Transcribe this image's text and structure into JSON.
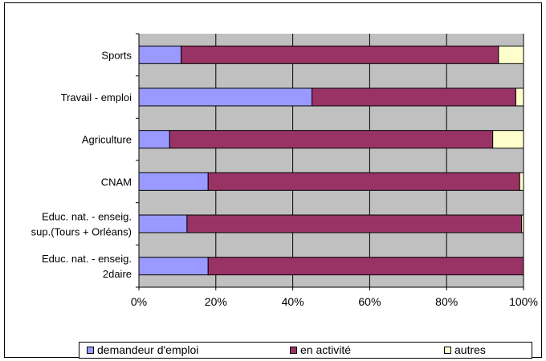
{
  "chart_data": {
    "type": "bar",
    "orientation": "horizontal",
    "stacked": true,
    "percent": true,
    "categories": [
      [
        "Sports"
      ],
      [
        "Travail - emploi"
      ],
      [
        "Agriculture"
      ],
      [
        "CNAM"
      ],
      [
        "Educ. nat. - enseig.",
        "sup.(Tours + Orléans)"
      ],
      [
        "Educ. nat. - enseig.",
        "2daire"
      ]
    ],
    "series": [
      {
        "name": "demandeur d'emploi",
        "color": "#9999ff",
        "values": [
          11,
          45,
          8,
          18,
          12.5,
          18
        ]
      },
      {
        "name": "en activité",
        "color": "#993366",
        "values": [
          82.5,
          53,
          84,
          81,
          87,
          82
        ]
      },
      {
        "name": "autres",
        "color": "#ffffcc",
        "values": [
          6.5,
          2,
          8,
          1,
          0.5,
          0
        ]
      }
    ],
    "x_ticks": [
      "0%",
      "20%",
      "40%",
      "60%",
      "80%",
      "100%"
    ],
    "xlim": [
      0,
      100
    ],
    "grid": true,
    "plot_background": "#c0c0c0",
    "legend_position": "bottom"
  }
}
